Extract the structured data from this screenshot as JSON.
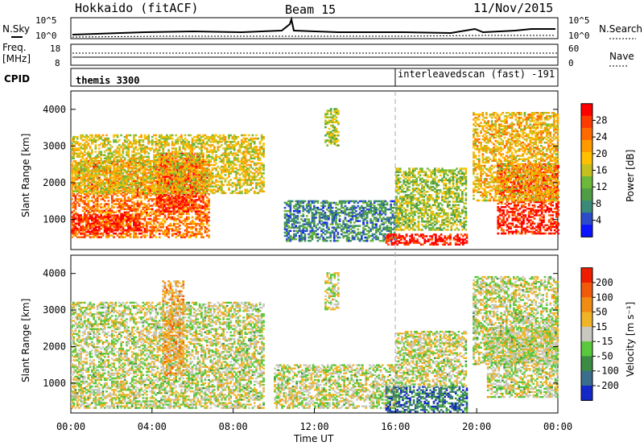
{
  "header": {
    "station": "Hokkaido (fitACF)",
    "beam": "Beam 15",
    "date": "11/Nov/2015"
  },
  "aux_panels": {
    "nsky_label": "N.Sky",
    "nsearch_label": "N.Search",
    "noise_ticks": [
      "10^5",
      "10^0"
    ],
    "freq_label_1": "Freq.",
    "freq_label_2": "[MHz]",
    "freq_ticks": [
      "18",
      "8"
    ],
    "nave_label": "Nave",
    "nave_ticks": [
      "60",
      "0"
    ],
    "cpid_label": "CPID",
    "cpid_segments": [
      "themis 3300",
      "interleavedscan (fast) -191"
    ]
  },
  "chart_data": [
    {
      "type": "heatmap",
      "name": "power",
      "ylabel": "Slant Range [km]",
      "yticks": [
        1000,
        2000,
        3000,
        4000
      ],
      "ylim": [
        180,
        4500
      ],
      "xlim_hours": [
        0,
        24
      ],
      "colorbar_label": "Power [dB]",
      "colorbar_ticks": [
        "4",
        "8",
        "12",
        "16",
        "20",
        "24",
        "28"
      ],
      "colorbar_colors": [
        "#0a14ff",
        "#2c4bc8",
        "#3a8a7a",
        "#4f9d45",
        "#6fb93a",
        "#c6c01e",
        "#ffc000",
        "#ff9a00",
        "#ff6a00",
        "#ff3a00",
        "#ff0000"
      ],
      "regions": [
        {
          "t0": 0.0,
          "t1": 6.8,
          "r0": 500,
          "r1": 2600,
          "level": 0.75
        },
        {
          "t0": 0.0,
          "t1": 3.5,
          "r0": 600,
          "r1": 1100,
          "level": 0.95
        },
        {
          "t0": 4.2,
          "t1": 6.5,
          "r0": 1200,
          "r1": 2800,
          "level": 0.9
        },
        {
          "t0": 0.0,
          "t1": 9.5,
          "r0": 1700,
          "r1": 3300,
          "level": 0.55
        },
        {
          "t0": 12.5,
          "t1": 13.2,
          "r0": 3000,
          "r1": 4000,
          "level": 0.45
        },
        {
          "t0": 10.5,
          "t1": 16.0,
          "r0": 400,
          "r1": 1500,
          "level": 0.25
        },
        {
          "t0": 15.5,
          "t1": 19.5,
          "r0": 300,
          "r1": 600,
          "level": 0.95
        },
        {
          "t0": 16.0,
          "t1": 19.5,
          "r0": 700,
          "r1": 2400,
          "level": 0.45
        },
        {
          "t0": 21.0,
          "t1": 24.0,
          "r0": 600,
          "r1": 2500,
          "level": 0.9
        },
        {
          "t0": 19.8,
          "t1": 24.0,
          "r0": 1500,
          "r1": 3900,
          "level": 0.6
        }
      ]
    },
    {
      "type": "heatmap",
      "name": "velocity",
      "ylabel": "Slant Range [km]",
      "yticks": [
        1000,
        2000,
        3000,
        4000
      ],
      "ylim": [
        180,
        4500
      ],
      "xlabel": "Time UT",
      "xticks": [
        "00:00",
        "04:00",
        "08:00",
        "12:00",
        "16:00",
        "20:00",
        "00:00"
      ],
      "xlim_hours": [
        0,
        24
      ],
      "colorbar_label": "Velocity [m s⁻¹]",
      "colorbar_ticks": [
        "200",
        "100",
        "50",
        "15",
        "-15",
        "-50",
        "-100",
        "-200"
      ],
      "colorbar_colors": [
        "#1428c8",
        "#3a6e8c",
        "#3c8c46",
        "#5ac83c",
        "#c8c8c0",
        "#f0b428",
        "#f08c14",
        "#f05a0a",
        "#f01e00"
      ],
      "regions": [
        {
          "t0": 0.0,
          "t1": 9.5,
          "r0": 300,
          "r1": 3200,
          "level": 0.5
        },
        {
          "t0": 4.5,
          "t1": 5.5,
          "r0": 1200,
          "r1": 3800,
          "level": 0.65
        },
        {
          "t0": 12.5,
          "t1": 13.2,
          "r0": 3000,
          "r1": 4000,
          "level": 0.5
        },
        {
          "t0": 10.0,
          "t1": 16.0,
          "r0": 300,
          "r1": 1500,
          "level": 0.5
        },
        {
          "t0": 15.5,
          "t1": 19.5,
          "r0": 200,
          "r1": 900,
          "level": 0.2
        },
        {
          "t0": 16.0,
          "t1": 19.5,
          "r0": 900,
          "r1": 2400,
          "level": 0.5
        },
        {
          "t0": 20.5,
          "t1": 24.0,
          "r0": 600,
          "r1": 2500,
          "level": 0.5
        },
        {
          "t0": 19.8,
          "t1": 24.0,
          "r0": 1500,
          "r1": 3900,
          "level": 0.5
        }
      ]
    }
  ]
}
